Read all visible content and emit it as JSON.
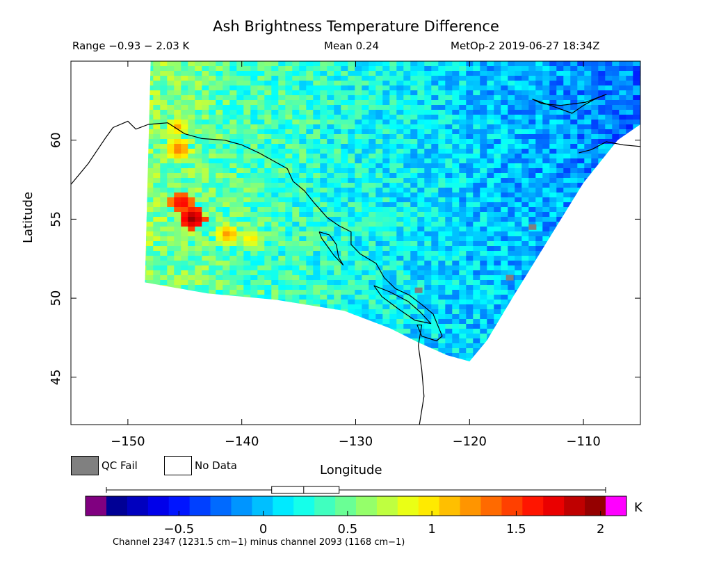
{
  "header": {
    "title": "Ash Brightness Temperature Difference",
    "range": "Range −0.93 − 2.03 K",
    "mean": "Mean 0.24",
    "satellite_time": "MetOp-2 2019-06-27 18:34Z"
  },
  "legend": {
    "qc_fail_label": "QC Fail",
    "no_data_label": "No Data",
    "qc_fail_color": "#808080",
    "no_data_color": "#ffffff"
  },
  "colorbar": {
    "unit": "K",
    "note": "Channel 2347 (1231.5 cm−1) minus channel 2093 (1168 cm−1)",
    "min": -0.93,
    "max": 2.03,
    "ticks": [
      {
        "value": -0.5,
        "label": "−0.5"
      },
      {
        "value": 0,
        "label": "0"
      },
      {
        "value": 0.5,
        "label": "0.5"
      },
      {
        "value": 1,
        "label": "1"
      },
      {
        "value": 1.5,
        "label": "1.5"
      },
      {
        "value": 2,
        "label": "2"
      }
    ],
    "underflow_color": "#800080",
    "overflow_color": "#ff00ff",
    "boxplot": {
      "whisker_low": -0.93,
      "q1": 0.05,
      "median": 0.24,
      "q3": 0.45,
      "whisker_high": 2.03
    }
  },
  "chart_data": {
    "type": "heatmap",
    "title": "Ash Brightness Temperature Difference",
    "xlabel": "Longitude",
    "ylabel": "Latitude",
    "xlim": [
      -155,
      -105
    ],
    "ylim": [
      42,
      65
    ],
    "x_ticks": [
      {
        "value": -150,
        "label": "−150"
      },
      {
        "value": -140,
        "label": "−140"
      },
      {
        "value": -130,
        "label": "−130"
      },
      {
        "value": -120,
        "label": "−120"
      },
      {
        "value": -110,
        "label": "−110"
      }
    ],
    "y_ticks": [
      {
        "value": 45,
        "label": "45"
      },
      {
        "value": 50,
        "label": "50"
      },
      {
        "value": 55,
        "label": "55"
      },
      {
        "value": 60,
        "label": "60"
      }
    ],
    "value_range": [
      -0.93,
      2.03
    ],
    "mean": 0.24,
    "units": "K",
    "swath_boundary": [
      [
        -148,
        65
      ],
      [
        -148.5,
        51
      ],
      [
        -143,
        50.3
      ],
      [
        -137,
        49.9
      ],
      [
        -131,
        49.2
      ],
      [
        -127,
        48.1
      ],
      [
        -124.5,
        47.2
      ],
      [
        -122,
        46.4
      ],
      [
        -120,
        46
      ],
      [
        -118.5,
        47.3
      ],
      [
        -116,
        50.3
      ],
      [
        -113,
        53.8
      ],
      [
        -110,
        57.3
      ],
      [
        -107,
        60
      ],
      [
        -105,
        61
      ],
      [
        -105,
        65
      ]
    ],
    "hot_spots": [
      {
        "lon": -145.8,
        "lat": 59.6,
        "value": 1.4
      },
      {
        "lon": -145.6,
        "lat": 56.2,
        "value": 1.8
      },
      {
        "lon": -144.6,
        "lat": 55.2,
        "value": 2.03
      },
      {
        "lon": -146,
        "lat": 61,
        "value": 1.2
      },
      {
        "lon": -141.5,
        "lat": 54.2,
        "value": 1.3
      },
      {
        "lon": -139.5,
        "lat": 53.9,
        "value": 1.1
      }
    ],
    "qc_fail_points": [
      {
        "lon": -124.5,
        "lat": 50.5
      },
      {
        "lon": -114.5,
        "lat": 54.5
      },
      {
        "lon": -116.5,
        "lat": 51.3
      }
    ],
    "coastline": [
      [
        [
          -155,
          57.2
        ],
        [
          -153.5,
          58.5
        ],
        [
          -152,
          60.1
        ],
        [
          -151.3,
          60.8
        ],
        [
          -150,
          61.2
        ],
        [
          -149.3,
          60.7
        ],
        [
          -148.2,
          61
        ],
        [
          -146.5,
          61.1
        ],
        [
          -145,
          60.4
        ],
        [
          -143.5,
          60.1
        ],
        [
          -141.5,
          60
        ],
        [
          -140,
          59.7
        ],
        [
          -138.5,
          59.2
        ],
        [
          -137,
          58.6
        ],
        [
          -136,
          58.2
        ],
        [
          -135.5,
          57.4
        ],
        [
          -134.5,
          56.8
        ],
        [
          -133.6,
          56
        ],
        [
          -132.5,
          55.1
        ],
        [
          -131.5,
          54.6
        ],
        [
          -130.4,
          54.2
        ],
        [
          -130.4,
          53.4
        ],
        [
          -129.6,
          52.8
        ],
        [
          -128.2,
          52.2
        ],
        [
          -127.5,
          51.3
        ],
        [
          -126.5,
          50.6
        ],
        [
          -125.3,
          50.2
        ],
        [
          -124.2,
          49.6
        ],
        [
          -123.2,
          49
        ],
        [
          -122.8,
          48.3
        ],
        [
          -122.4,
          47.6
        ],
        [
          -122.9,
          47.3
        ],
        [
          -124.2,
          47.6
        ],
        [
          -124.6,
          48.3
        ],
        [
          -124.2,
          48.3
        ],
        [
          -124.5,
          47
        ],
        [
          -124.2,
          45.5
        ],
        [
          -124,
          43.8
        ],
        [
          -124.4,
          42
        ]
      ],
      [
        [
          -133.2,
          54.2
        ],
        [
          -132.3,
          54
        ],
        [
          -131.7,
          53.4
        ],
        [
          -131.5,
          52.6
        ],
        [
          -131.1,
          52.1
        ],
        [
          -131.9,
          52.7
        ],
        [
          -132.5,
          53.3
        ],
        [
          -133,
          53.8
        ],
        [
          -133.2,
          54.2
        ]
      ],
      [
        [
          -128.4,
          50.8
        ],
        [
          -127,
          50.4
        ],
        [
          -125.4,
          49.8
        ],
        [
          -124.3,
          49.1
        ],
        [
          -123.4,
          48.4
        ],
        [
          -124.8,
          48.6
        ],
        [
          -126.2,
          49.3
        ],
        [
          -127.7,
          50.1
        ],
        [
          -128.4,
          50.8
        ]
      ],
      [
        [
          -114.5,
          62.6
        ],
        [
          -112.5,
          62.1
        ],
        [
          -111,
          61.7
        ],
        [
          -110,
          62.2
        ],
        [
          -109,
          62.6
        ],
        [
          -108,
          62.9
        ],
        [
          -109.8,
          62.4
        ],
        [
          -112,
          62.2
        ],
        [
          -113.6,
          62.3
        ],
        [
          -114.5,
          62.6
        ]
      ],
      [
        [
          -110.4,
          59.2
        ],
        [
          -109.3,
          59.4
        ],
        [
          -108,
          59.9
        ],
        [
          -106.5,
          59.7
        ],
        [
          -105,
          59.6
        ]
      ]
    ]
  }
}
